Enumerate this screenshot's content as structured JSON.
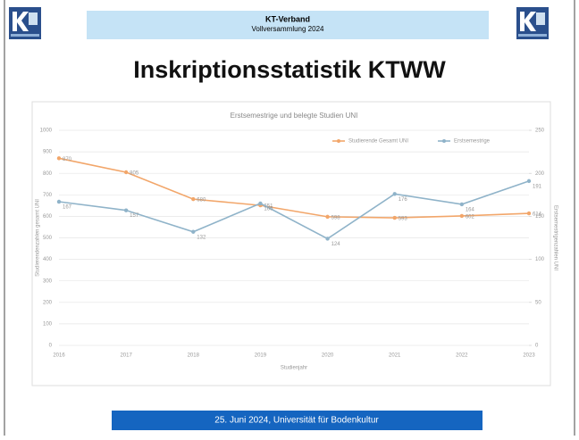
{
  "header": {
    "title": "KT-Verband",
    "subtitle": "Vollversammlung 2024"
  },
  "slide_title": "Inskriptionsstatistik KTWW",
  "footer": "25. Juni 2024,  Universität für Bodenkultur",
  "chart_data": {
    "type": "line",
    "title": "Erstsemestrige und belegte Studien UNI",
    "x_label": "Studienjahr",
    "y_label": "Studierendenzahlen gesamt UNI",
    "y2_label": "Erstsemestrigenzahlen UNI",
    "categories": [
      "2016",
      "2017",
      "2018",
      "2019",
      "2020",
      "2021",
      "2022",
      "2023"
    ],
    "ylim": [
      0,
      1000
    ],
    "yticks": [
      0,
      100,
      200,
      300,
      400,
      500,
      600,
      700,
      800,
      900,
      1000
    ],
    "y2lim": [
      0,
      250
    ],
    "y2ticks": [
      0,
      50,
      100,
      150,
      200,
      250
    ],
    "grid": true,
    "legend": "top-right",
    "series": [
      {
        "name": "Studierende Gesamt UNI",
        "color": "#f2a66a",
        "values": [
          870,
          805,
          680,
          651,
          598,
          593,
          602,
          614
        ]
      },
      {
        "name": "Erstsemestrige",
        "color": "#8fb3c9",
        "axis": "y2",
        "values": [
          167,
          157,
          132,
          165,
          124,
          176,
          164,
          191
        ]
      }
    ]
  }
}
